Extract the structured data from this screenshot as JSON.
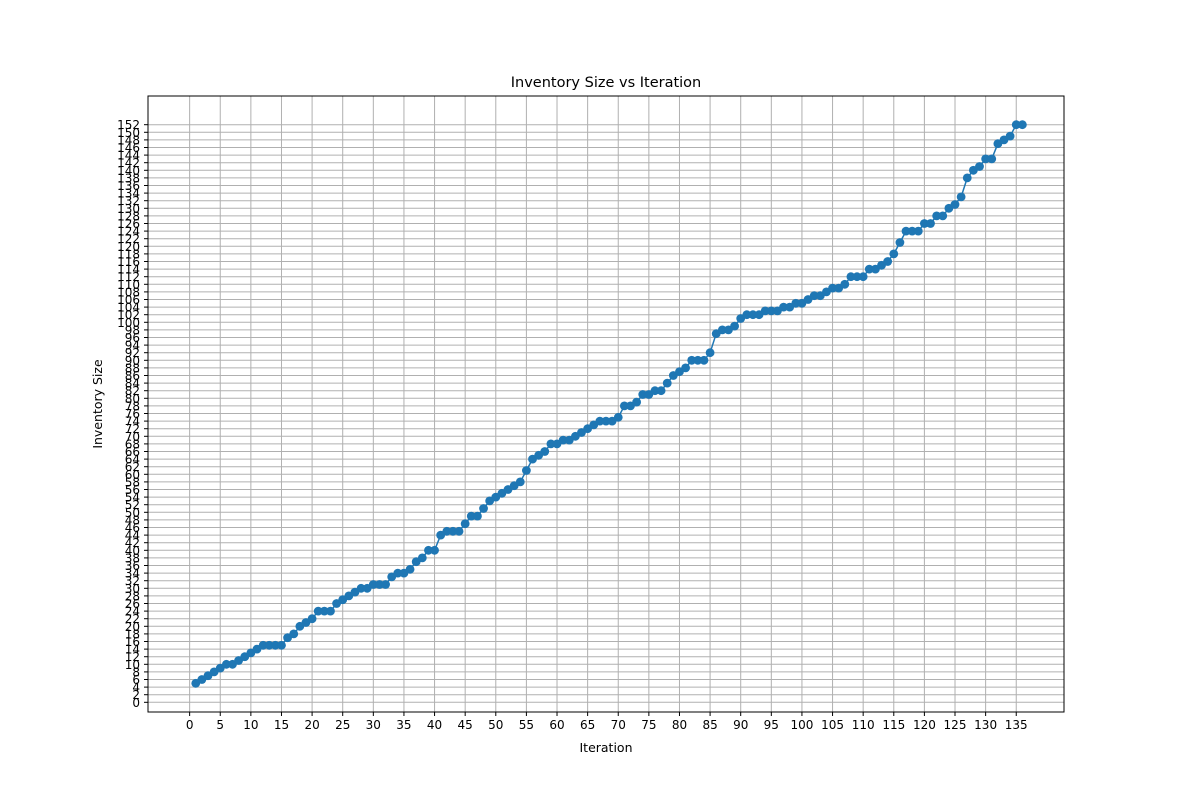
{
  "chart_data": {
    "type": "line",
    "title": "Inventory Size vs Iteration",
    "xlabel": "Iteration",
    "ylabel": "Inventory Size",
    "xlim": [
      -6.8,
      142.8
    ],
    "ylim": [
      -2.55,
      159.55
    ],
    "grid": true,
    "legend": "none",
    "markers": "circle",
    "xticks": [
      0,
      5,
      10,
      15,
      20,
      25,
      30,
      35,
      40,
      45,
      50,
      55,
      60,
      65,
      70,
      75,
      80,
      85,
      90,
      95,
      100,
      105,
      110,
      115,
      120,
      125,
      130,
      135
    ],
    "yticks": [
      0,
      2,
      4,
      6,
      8,
      10,
      12,
      14,
      16,
      18,
      20,
      22,
      24,
      26,
      28,
      30,
      32,
      34,
      36,
      38,
      40,
      42,
      44,
      46,
      48,
      50,
      52,
      54,
      56,
      58,
      60,
      62,
      64,
      66,
      68,
      70,
      72,
      74,
      76,
      78,
      80,
      82,
      84,
      86,
      88,
      90,
      92,
      94,
      96,
      98,
      100,
      102,
      104,
      106,
      108,
      110,
      112,
      114,
      116,
      118,
      120,
      122,
      124,
      126,
      128,
      130,
      132,
      134,
      136,
      138,
      140,
      142,
      144,
      146,
      148,
      150,
      152
    ],
    "series": [
      {
        "color": "#1f77b4",
        "x": [
          1,
          2,
          3,
          4,
          5,
          6,
          7,
          8,
          9,
          10,
          11,
          12,
          13,
          14,
          15,
          16,
          17,
          18,
          19,
          20,
          21,
          22,
          23,
          24,
          25,
          26,
          27,
          28,
          29,
          30,
          31,
          32,
          33,
          34,
          35,
          36,
          37,
          38,
          39,
          40,
          41,
          42,
          43,
          44,
          45,
          46,
          47,
          48,
          49,
          50,
          51,
          52,
          53,
          54,
          55,
          56,
          57,
          58,
          59,
          60,
          61,
          62,
          63,
          64,
          65,
          66,
          67,
          68,
          69,
          70,
          71,
          72,
          73,
          74,
          75,
          76,
          77,
          78,
          79,
          80,
          81,
          82,
          83,
          84,
          85,
          86,
          87,
          88,
          89,
          90,
          91,
          92,
          93,
          94,
          95,
          96,
          97,
          98,
          99,
          100,
          101,
          102,
          103,
          104,
          105,
          106,
          107,
          108,
          109,
          110,
          111,
          112,
          113,
          114,
          115,
          116,
          117,
          118,
          119,
          120,
          121,
          122,
          123,
          124,
          125,
          126,
          127,
          128,
          129,
          130,
          131,
          132,
          133,
          134,
          135,
          136
        ],
        "y": [
          5,
          6,
          7,
          8,
          9,
          10,
          10,
          11,
          12,
          13,
          14,
          15,
          15,
          15,
          15,
          17,
          18,
          20,
          21,
          22,
          24,
          24,
          24,
          26,
          27,
          28,
          29,
          30,
          30,
          31,
          31,
          31,
          33,
          34,
          34,
          35,
          37,
          38,
          40,
          40,
          44,
          45,
          45,
          45,
          47,
          49,
          49,
          51,
          53,
          54,
          55,
          56,
          57,
          58,
          61,
          64,
          65,
          66,
          68,
          68,
          69,
          69,
          70,
          71,
          72,
          73,
          74,
          74,
          74,
          75,
          78,
          78,
          79,
          81,
          81,
          82,
          82,
          84,
          86,
          87,
          88,
          90,
          90,
          90,
          92,
          97,
          98,
          98,
          99,
          101,
          102,
          102,
          102,
          103,
          103,
          103,
          104,
          104,
          105,
          105,
          106,
          107,
          107,
          108,
          109,
          109,
          110,
          112,
          112,
          112,
          114,
          114,
          115,
          116,
          118,
          121,
          124,
          124,
          124,
          126,
          126,
          128,
          128,
          130,
          131,
          133,
          138,
          140,
          141,
          143,
          143,
          147,
          148,
          149,
          152,
          152
        ]
      }
    ]
  }
}
